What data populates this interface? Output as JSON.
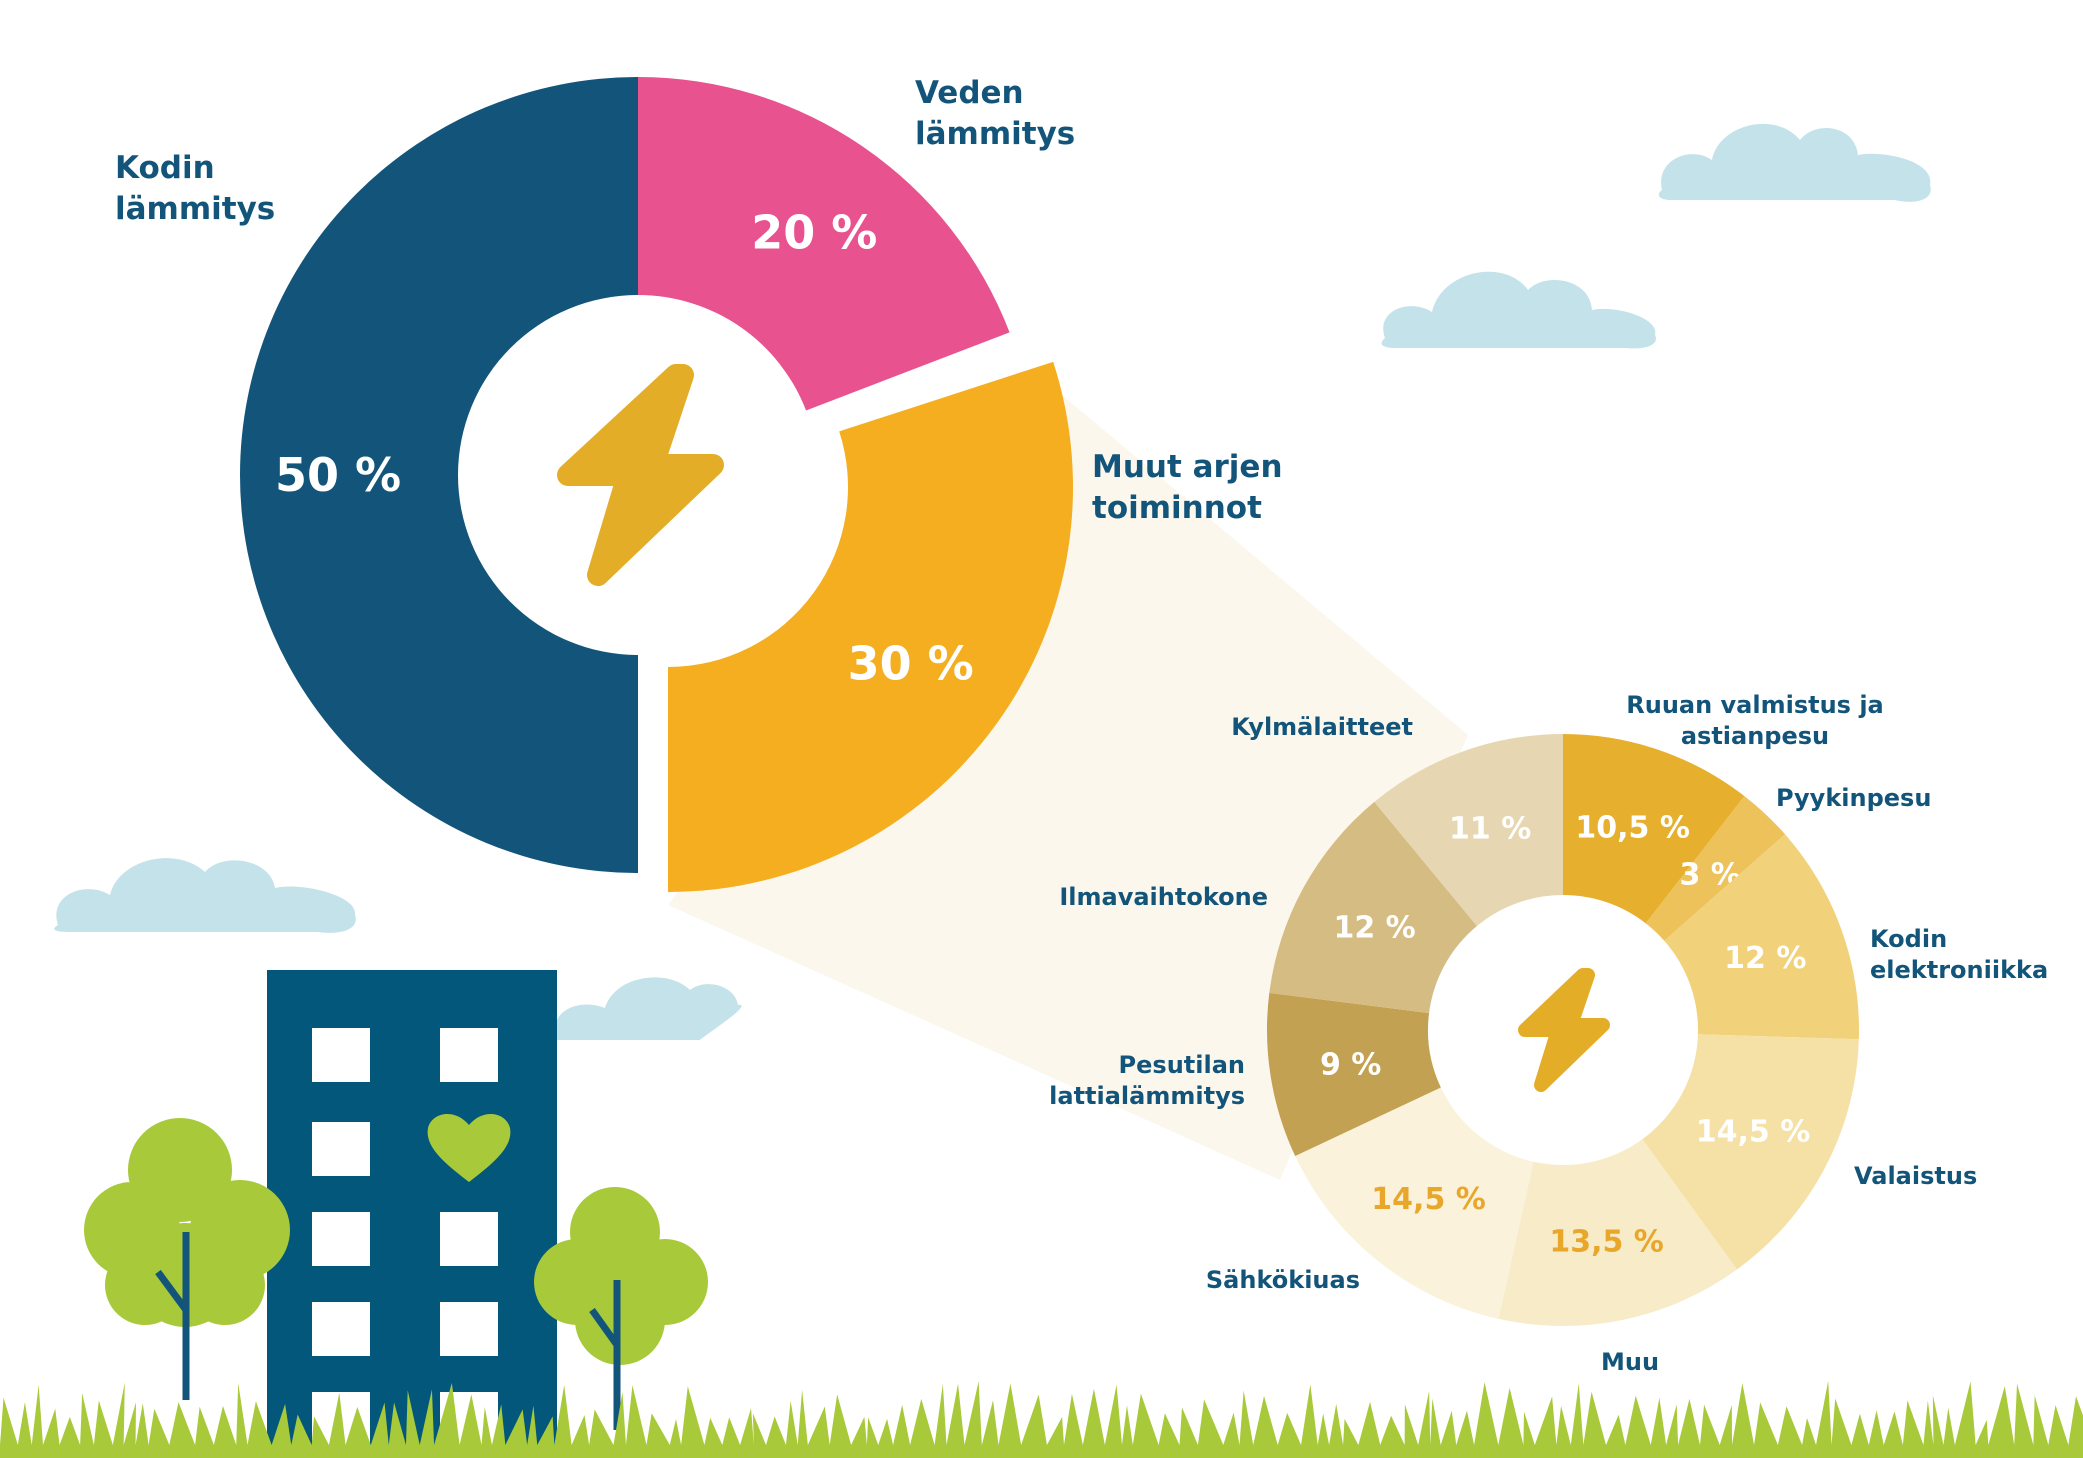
{
  "chart_data": [
    {
      "type": "pie",
      "categories": [
        "Kodin lämmitys",
        "Veden lämmitys",
        "Muut arjen toiminnot"
      ],
      "values": [
        50,
        20,
        30
      ],
      "value_labels": [
        "50 %",
        "20 %",
        "30 %"
      ],
      "colors": [
        "#13557a",
        "#e8528f",
        "#f4ae1f"
      ],
      "title": "",
      "legend": "none"
    },
    {
      "type": "pie",
      "categories": [
        "Ruuan valmistus ja astianpesu",
        "Pyykinpesu",
        "Kodin elektroniikka",
        "Valaistus",
        "Muu",
        "Sähkökiuas",
        "Pesutilan lattialämmitys",
        "Ilmavaihtokone",
        "Kylmälaitteet"
      ],
      "values": [
        10.5,
        3,
        12,
        14.5,
        13.5,
        14.5,
        9,
        12,
        11
      ],
      "value_labels": [
        "10,5 %",
        "3 %",
        "12 %",
        "14,5 %",
        "13,5 %",
        "14,5 %",
        "9 %",
        "12 %",
        "11 %"
      ],
      "colors": [
        "#e6b02e",
        "#eec25a",
        "#f1d179",
        "#f5e1a6",
        "#f8ebc8",
        "#fbf2dc",
        "#c3a152",
        "#d5bc83",
        "#e6d7b2"
      ],
      "value_label_colors": [
        "#ffffff",
        "#ffffff",
        "#ffffff",
        "#ffffff",
        "#e8a72a",
        "#e8a72a",
        "#ffffff",
        "#ffffff",
        "#ffffff"
      ],
      "title": "",
      "legend": "none"
    }
  ],
  "icons": {
    "center_large": "lightning-bolt-icon",
    "center_small": "lightning-bolt-icon",
    "building": "apartment-building-icon",
    "heart": "heart-icon",
    "trees": "tree-icon",
    "clouds": "cloud-icon",
    "grass": "grass-icon"
  },
  "colors": {
    "navy": "#13557a",
    "pink": "#e8528f",
    "orange": "#f4ae1f",
    "bolt": "#e4ad27",
    "cloud": "#c4e2ea",
    "tree": "#a8c93a",
    "grass": "#a8c93a",
    "building": "#02577a",
    "zoom_cone": "#fcf7ec"
  }
}
